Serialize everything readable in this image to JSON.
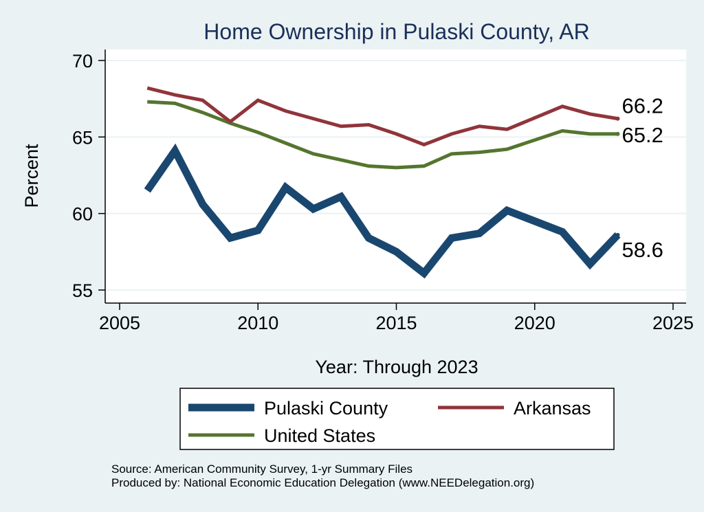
{
  "chart_data": {
    "type": "line",
    "title": "Home Ownership in Pulaski County, AR",
    "xlabel": "Year: Through 2023",
    "ylabel": "Percent",
    "xlim": [
      2005,
      2025
    ],
    "ylim": [
      55,
      70
    ],
    "xticks": [
      "2005",
      "2010",
      "2015",
      "2020",
      "2025"
    ],
    "yticks": [
      "55",
      "60",
      "65",
      "70"
    ],
    "grid": true,
    "legend_position": "bottom",
    "x": [
      2006,
      2007,
      2008,
      2009,
      2010,
      2011,
      2012,
      2013,
      2014,
      2015,
      2016,
      2017,
      2018,
      2019,
      2021,
      2022,
      2023
    ],
    "series": [
      {
        "name": "Pulaski County",
        "color": "#1a476f",
        "end_label": "58.6",
        "values": [
          61.5,
          64.1,
          60.6,
          58.4,
          58.9,
          61.7,
          60.3,
          61.1,
          58.4,
          57.5,
          56.1,
          58.4,
          58.7,
          60.2,
          58.8,
          56.7,
          58.6
        ]
      },
      {
        "name": "Arkansas",
        "color": "#90353b",
        "end_label": "66.2",
        "values": [
          68.2,
          67.75,
          67.4,
          66.0,
          67.4,
          66.7,
          66.2,
          65.7,
          65.8,
          65.2,
          64.5,
          65.2,
          65.7,
          65.5,
          67.0,
          66.5,
          66.2
        ]
      },
      {
        "name": "United States",
        "color": "#55752f",
        "end_label": "65.2",
        "values": [
          67.3,
          67.2,
          66.6,
          65.9,
          65.3,
          64.6,
          63.9,
          63.5,
          63.1,
          63.0,
          63.1,
          63.9,
          64.0,
          64.2,
          65.4,
          65.2,
          65.2
        ]
      }
    ],
    "notes": [
      "Source: American Community Survey, 1-yr Summary Files",
      "Produced by: National Economic Education Delegation (www.NEEDelegation.org)"
    ]
  }
}
